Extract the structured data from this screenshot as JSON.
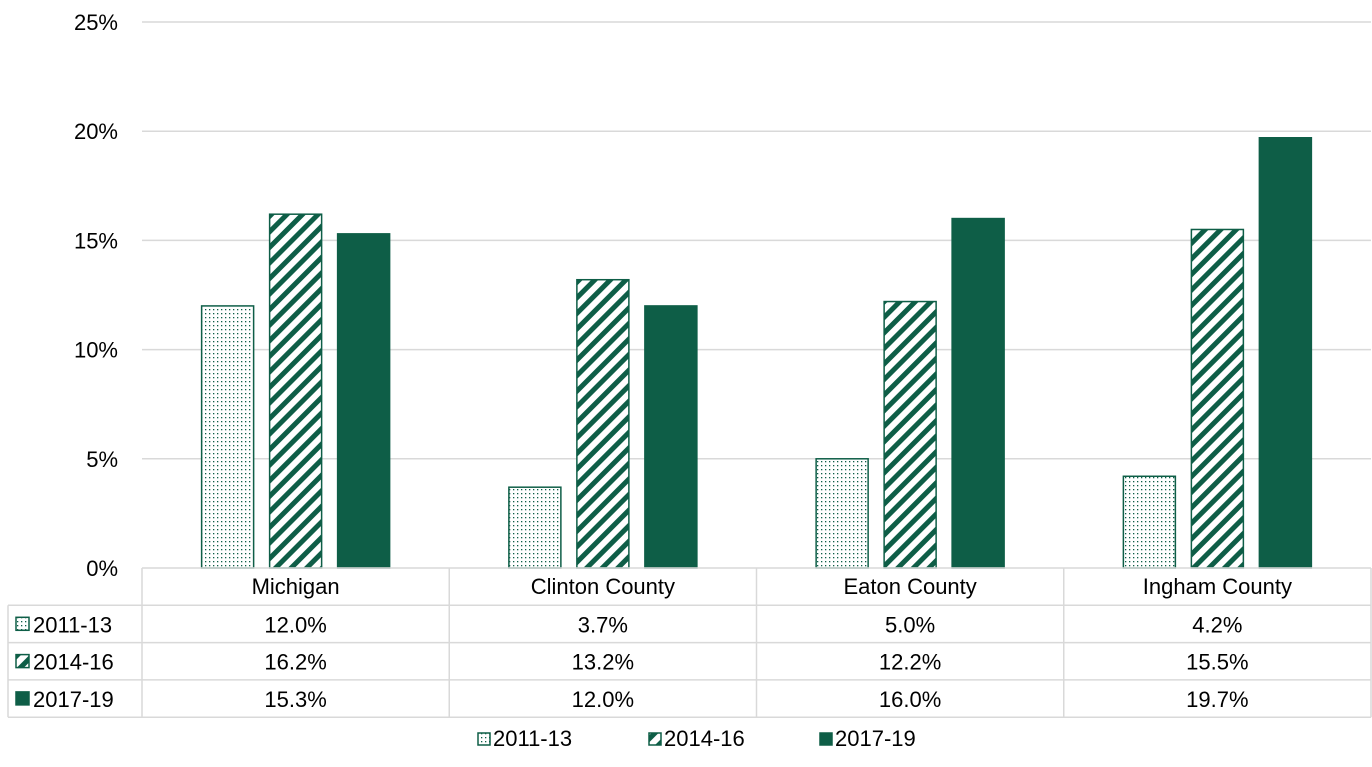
{
  "chart_data": {
    "type": "bar",
    "title": "",
    "xlabel": "",
    "ylabel": "",
    "categories": [
      "Michigan",
      "Clinton County",
      "Eaton County",
      "Ingham County"
    ],
    "series": [
      {
        "name": "2011-13",
        "values": [
          12.0,
          3.7,
          5.0,
          4.2
        ],
        "labels": [
          "12.0%",
          "3.7%",
          "5.0%",
          "4.2%"
        ],
        "pattern": "dots"
      },
      {
        "name": "2014-16",
        "values": [
          16.2,
          13.2,
          12.2,
          15.5
        ],
        "labels": [
          "16.2%",
          "13.2%",
          "12.2%",
          "15.5%"
        ],
        "pattern": "stripes"
      },
      {
        "name": "2017-19",
        "values": [
          15.3,
          12.0,
          16.0,
          19.7
        ],
        "labels": [
          "15.3%",
          "12.0%",
          "16.0%",
          "19.7%"
        ],
        "pattern": "solid"
      }
    ],
    "ylim": [
      0,
      25
    ],
    "yticks": [
      0,
      5,
      10,
      15,
      20,
      25
    ],
    "ytick_labels": [
      "0%",
      "5%",
      "10%",
      "15%",
      "20%",
      "25%"
    ],
    "grid": true,
    "data_table": true,
    "legend": "bottom",
    "colors": {
      "bar": "#0e5e47",
      "grid": "#d9d9d9",
      "table_border": "#d9d9d9"
    }
  }
}
